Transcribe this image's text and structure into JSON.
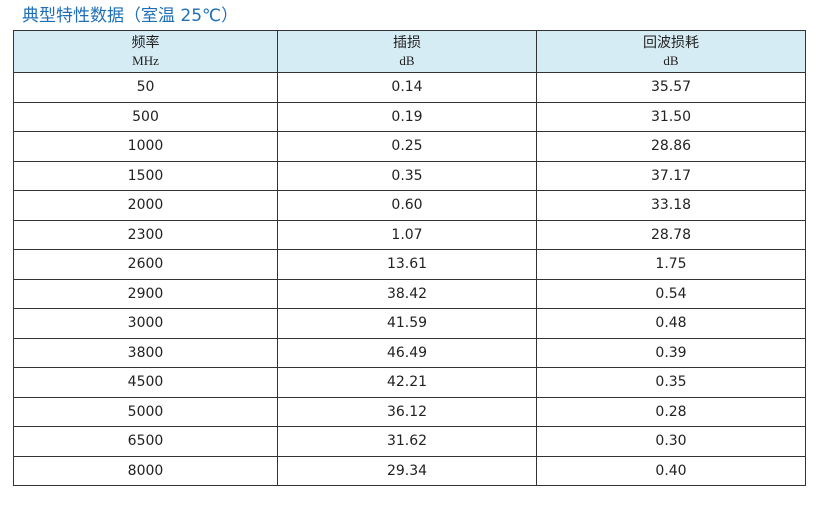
{
  "header": {
    "title": "典型特性数据（室温 25℃）"
  },
  "table": {
    "columns": [
      {
        "name": "频率",
        "unit": "MHz"
      },
      {
        "name": "插损",
        "unit": "dB"
      },
      {
        "name": "回波损耗",
        "unit": "dB"
      }
    ],
    "rows": [
      [
        "50",
        "0.14",
        "35.57"
      ],
      [
        "500",
        "0.19",
        "31.50"
      ],
      [
        "1000",
        "0.25",
        "28.86"
      ],
      [
        "1500",
        "0.35",
        "37.17"
      ],
      [
        "2000",
        "0.60",
        "33.18"
      ],
      [
        "2300",
        "1.07",
        "28.78"
      ],
      [
        "2600",
        "13.61",
        "1.75"
      ],
      [
        "2900",
        "38.42",
        "0.54"
      ],
      [
        "3000",
        "41.59",
        "0.48"
      ],
      [
        "3800",
        "46.49",
        "0.39"
      ],
      [
        "4500",
        "42.21",
        "0.35"
      ],
      [
        "5000",
        "36.12",
        "0.28"
      ],
      [
        "6500",
        "31.62",
        "0.30"
      ],
      [
        "8000",
        "29.34",
        "0.40"
      ]
    ]
  }
}
